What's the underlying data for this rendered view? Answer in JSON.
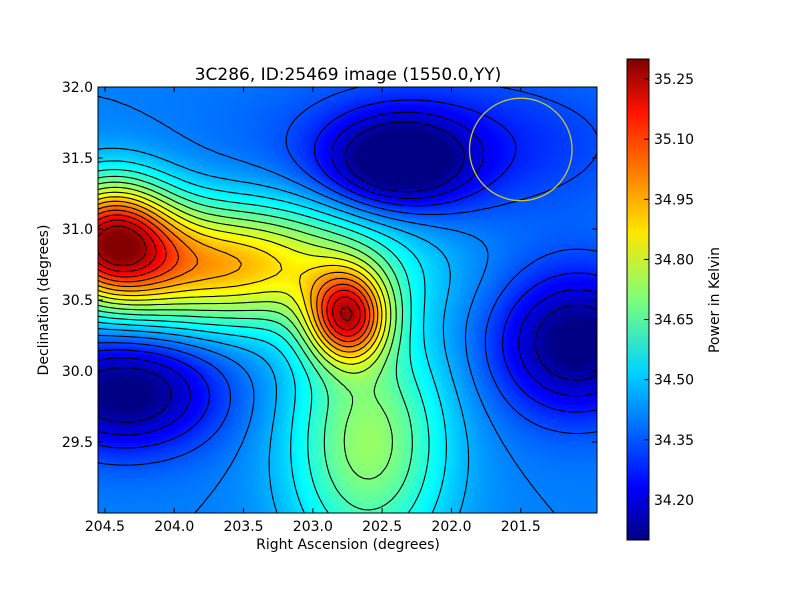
{
  "chart_data": {
    "type": "heatmap",
    "title": "3C286, ID:25469 image (1550.0,YY)",
    "xlabel": "Right Ascension (degrees)",
    "ylabel": "Declination (degrees)",
    "xlim": [
      204.55,
      200.95
    ],
    "ylim": [
      29.0,
      32.0
    ],
    "x_ticks": [
      204.5,
      204.0,
      203.5,
      203.0,
      202.5,
      202.0,
      201.5
    ],
    "x_tick_labels": [
      "204.5",
      "204.0",
      "203.5",
      "203.0",
      "202.5",
      "202.0",
      "201.5"
    ],
    "y_ticks": [
      29.5,
      30.0,
      30.5,
      31.0,
      31.5,
      32.0
    ],
    "y_tick_labels": [
      "29.5",
      "30.0",
      "30.5",
      "31.0",
      "31.5",
      "32.0"
    ],
    "colormap": "jet",
    "colorbar": {
      "label": "Power in Kelvin",
      "range": [
        34.1,
        35.3
      ],
      "ticks": [
        34.2,
        34.35,
        34.5,
        34.65,
        34.8,
        34.95,
        35.1,
        35.25
      ],
      "tick_labels": [
        "34.20",
        "34.35",
        "34.50",
        "34.65",
        "34.80",
        "34.95",
        "35.10",
        "35.25"
      ]
    },
    "contours": "black contour lines",
    "features": [
      {
        "kind": "maximum",
        "ra": 204.45,
        "dec": 30.95,
        "value": 35.25
      },
      {
        "kind": "maximum",
        "ra": 202.75,
        "dec": 30.38,
        "value": 35.28
      },
      {
        "kind": "minimum",
        "ra": 204.35,
        "dec": 29.85,
        "value": 34.12
      },
      {
        "kind": "minimum",
        "ra": 202.38,
        "dec": 31.47,
        "value": 34.15
      },
      {
        "kind": "minimum",
        "ra": 201.1,
        "dec": 30.2,
        "value": 34.18
      }
    ],
    "beam": {
      "ra": 201.5,
      "dec": 31.56,
      "radius_deg": 0.37,
      "color": "#c8c832"
    }
  }
}
